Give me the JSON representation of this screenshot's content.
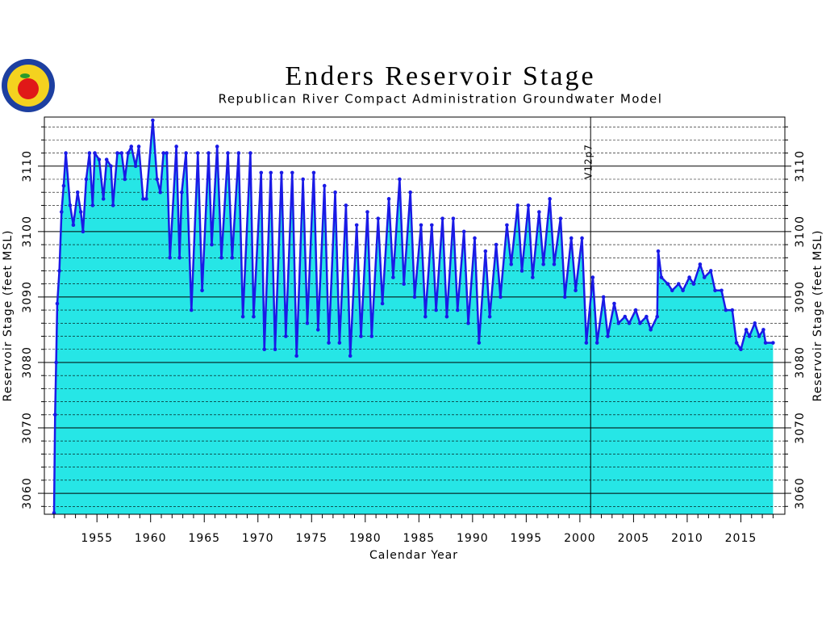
{
  "chart_data": {
    "type": "area",
    "title": "Enders Reservoir Stage",
    "subtitle": "Republican River Compact Administration Groundwater Model",
    "x_label": "Calendar Year",
    "y_label": "Reservoir Stage (feet MSL)",
    "line_color": "#1a1ae6",
    "fill_color": "#26e6e6",
    "xlim": [
      1950.1,
      2019.1
    ],
    "ylim": [
      3056.8,
      3117.5
    ],
    "xticks": [
      1955,
      1960,
      1965,
      1970,
      1975,
      1980,
      1985,
      1990,
      1995,
      2000,
      2005,
      2010,
      2015
    ],
    "xminorticks": [
      1951,
      1952,
      1953,
      1954,
      1956,
      1957,
      1958,
      1959,
      1961,
      1962,
      1963,
      1964,
      1966,
      1967,
      1968,
      1969,
      1971,
      1972,
      1973,
      1974,
      1976,
      1977,
      1978,
      1979,
      1981,
      1982,
      1983,
      1984,
      1986,
      1987,
      1988,
      1989,
      1991,
      1992,
      1993,
      1994,
      1996,
      1997,
      1998,
      1999,
      2001,
      2002,
      2003,
      2004,
      2006,
      2007,
      2008,
      2009,
      2011,
      2012,
      2013,
      2014,
      2016,
      2017,
      2018
    ],
    "yticks": [
      3060,
      3070,
      3080,
      3090,
      3100,
      3110
    ],
    "yminorticks": [
      3058,
      3062,
      3064,
      3066,
      3068,
      3072,
      3074,
      3076,
      3078,
      3082,
      3084,
      3086,
      3088,
      3092,
      3094,
      3096,
      3098,
      3102,
      3104,
      3106,
      3108,
      3112,
      3114,
      3116
    ],
    "grid": true,
    "annotations": [
      {
        "x": 2001,
        "label": "V12p7"
      }
    ],
    "x": [
      1951.0,
      1951.1,
      1951.2,
      1951.3,
      1951.5,
      1951.7,
      1951.9,
      1952.1,
      1952.5,
      1952.8,
      1953.2,
      1953.5,
      1953.7,
      1954.0,
      1954.3,
      1954.6,
      1954.8,
      1955.2,
      1955.6,
      1955.9,
      1956.3,
      1956.5,
      1956.9,
      1957.3,
      1957.6,
      1957.9,
      1958.2,
      1958.6,
      1958.9,
      1959.3,
      1959.6,
      1960.2,
      1960.6,
      1960.9,
      1961.2,
      1961.5,
      1961.8,
      1962.4,
      1962.7,
      1962.9,
      1963.3,
      1963.8,
      1964.4,
      1964.8,
      1965.4,
      1965.7,
      1966.2,
      1966.6,
      1967.2,
      1967.6,
      1968.2,
      1968.6,
      1969.3,
      1969.6,
      1970.3,
      1970.6,
      1971.2,
      1971.6,
      1972.2,
      1972.6,
      1973.2,
      1973.6,
      1974.2,
      1974.6,
      1975.2,
      1975.6,
      1976.2,
      1976.6,
      1977.2,
      1977.6,
      1978.2,
      1978.6,
      1979.2,
      1979.6,
      1980.2,
      1980.6,
      1981.2,
      1981.6,
      1982.2,
      1982.6,
      1983.2,
      1983.6,
      1984.2,
      1984.6,
      1985.2,
      1985.6,
      1986.2,
      1986.6,
      1987.2,
      1987.6,
      1988.2,
      1988.6,
      1989.2,
      1989.6,
      1990.2,
      1990.6,
      1991.2,
      1991.6,
      1992.2,
      1992.6,
      1993.2,
      1993.6,
      1994.2,
      1994.6,
      1995.2,
      1995.6,
      1996.2,
      1996.6,
      1997.2,
      1997.6,
      1998.2,
      1998.6,
      1999.2,
      1999.6,
      2000.2,
      2000.6,
      2001.2,
      2001.6,
      2002.2,
      2002.6,
      2003.2,
      2003.6,
      2004.2,
      2004.6,
      2005.2,
      2005.6,
      2006.2,
      2006.6,
      2007.2,
      2007.3,
      2007.6,
      2008.2,
      2008.6,
      2009.2,
      2009.6,
      2010.2,
      2010.6,
      2011.2,
      2011.6,
      2012.2,
      2012.6,
      2013.2,
      2013.6,
      2014.2,
      2014.6,
      2015.0,
      2015.5,
      2015.8,
      2016.3,
      2016.7,
      2017.1,
      2017.3,
      2018.0
    ],
    "values": [
      3057,
      3072,
      3080,
      3089,
      3094,
      3103,
      3107,
      3112,
      3104,
      3101,
      3106,
      3103,
      3100,
      3108,
      3112,
      3104,
      3112,
      3111,
      3105,
      3111,
      3110,
      3104,
      3112,
      3112,
      3108,
      3112,
      3113,
      3110,
      3113,
      3105,
      3105,
      3117,
      3108,
      3106,
      3112,
      3112,
      3096,
      3113,
      3096,
      3106,
      3112,
      3088,
      3112,
      3091,
      3112,
      3098,
      3113,
      3096,
      3112,
      3096,
      3112,
      3087,
      3112,
      3087,
      3109,
      3082,
      3109,
      3082,
      3109,
      3084,
      3109,
      3081,
      3108,
      3086,
      3109,
      3085,
      3107,
      3083,
      3106,
      3083,
      3104,
      3081,
      3101,
      3084,
      3103,
      3084,
      3102,
      3089,
      3105,
      3093,
      3108,
      3092,
      3106,
      3090,
      3101,
      3087,
      3101,
      3088,
      3102,
      3087,
      3102,
      3088,
      3100,
      3086,
      3099,
      3083,
      3097,
      3087,
      3098,
      3090,
      3101,
      3095,
      3104,
      3094,
      3104,
      3093,
      3103,
      3095,
      3105,
      3095,
      3102,
      3090,
      3099,
      3091,
      3099,
      3083,
      3093,
      3083,
      3090,
      3084,
      3089,
      3086,
      3087,
      3086,
      3088,
      3086,
      3087,
      3085,
      3087,
      3097,
      3093,
      3092,
      3091,
      3092,
      3091,
      3093,
      3092,
      3095,
      3093,
      3094,
      3091,
      3091,
      3088,
      3088,
      3083,
      3082,
      3085,
      3084,
      3086,
      3084,
      3085,
      3083,
      3083
    ]
  }
}
